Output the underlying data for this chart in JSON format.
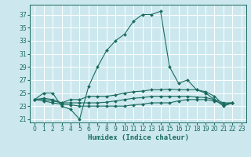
{
  "xlabel": "Humidex (Indice chaleur)",
  "bg_color": "#cce8ee",
  "grid_color": "#ffffff",
  "line_color": "#1a6b5e",
  "xlim": [
    -0.5,
    23.5
  ],
  "ylim": [
    20.5,
    38.5
  ],
  "yticks": [
    21,
    23,
    25,
    27,
    29,
    31,
    33,
    35,
    37
  ],
  "xticks": [
    0,
    1,
    2,
    3,
    4,
    5,
    6,
    7,
    8,
    9,
    10,
    11,
    12,
    13,
    14,
    15,
    16,
    17,
    18,
    19,
    20,
    21,
    22,
    23
  ],
  "series": [
    [
      24.0,
      25.0,
      25.0,
      23.0,
      22.5,
      21.0,
      26.0,
      29.0,
      31.5,
      33.0,
      34.0,
      36.0,
      37.0,
      37.0,
      37.5,
      29.0,
      26.5,
      27.0,
      25.5,
      25.0,
      24.0,
      23.0,
      23.5
    ],
    [
      24.0,
      24.2,
      24.0,
      23.5,
      24.0,
      24.0,
      24.5,
      24.5,
      24.5,
      24.7,
      25.0,
      25.2,
      25.3,
      25.5,
      25.5,
      25.6,
      25.5,
      25.5,
      25.5,
      25.2,
      24.5,
      23.2,
      23.5
    ],
    [
      24.0,
      24.0,
      23.8,
      23.5,
      23.5,
      23.5,
      23.5,
      23.5,
      23.6,
      23.8,
      24.0,
      24.2,
      24.3,
      24.5,
      24.5,
      24.5,
      24.5,
      24.5,
      24.4,
      24.3,
      24.0,
      23.5,
      23.5
    ],
    [
      24.0,
      23.8,
      23.5,
      23.3,
      23.2,
      23.0,
      23.0,
      23.0,
      23.0,
      23.0,
      23.0,
      23.2,
      23.3,
      23.5,
      23.5,
      23.5,
      23.8,
      24.0,
      24.0,
      24.0,
      23.8,
      23.3,
      23.5
    ]
  ],
  "series_x": [
    [
      0,
      1,
      2,
      3,
      4,
      5,
      6,
      7,
      8,
      9,
      10,
      11,
      12,
      13,
      14,
      15,
      16,
      17,
      18,
      19,
      20,
      21,
      22
    ],
    [
      0,
      1,
      2,
      3,
      4,
      5,
      6,
      7,
      8,
      9,
      10,
      11,
      12,
      13,
      14,
      15,
      16,
      17,
      18,
      19,
      20,
      21,
      22
    ],
    [
      0,
      1,
      2,
      3,
      4,
      5,
      6,
      7,
      8,
      9,
      10,
      11,
      12,
      13,
      14,
      15,
      16,
      17,
      18,
      19,
      20,
      21,
      22
    ],
    [
      0,
      1,
      2,
      3,
      4,
      5,
      6,
      7,
      8,
      9,
      10,
      11,
      12,
      13,
      14,
      15,
      16,
      17,
      18,
      19,
      20,
      21,
      22
    ]
  ],
  "marker": "D",
  "markersize": 2.0,
  "linewidth": 0.8,
  "tick_fontsize": 5.5,
  "xlabel_fontsize": 6.5
}
